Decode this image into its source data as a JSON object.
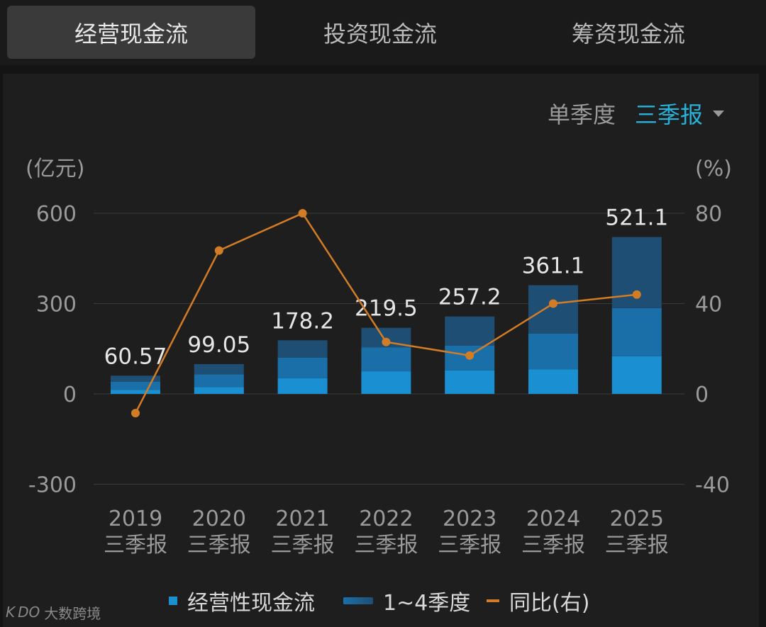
{
  "tabs": [
    "经营现金流",
    "投资现金流",
    "筹资现金流"
  ],
  "active_tab": 0,
  "period": {
    "single_label": "单季度",
    "selected_label": "三季报"
  },
  "colors": {
    "bg": "#141414",
    "panel": "#1e1e1e",
    "grid": "#3a3a3a",
    "bar_base": "#1a90d2",
    "bar_mid": "#1b6fa8",
    "bar_top": "#1e4e74",
    "line": "#d27c25",
    "accent": "#27b3d9"
  },
  "chart_data": {
    "type": "bar",
    "categories": [
      "2019",
      "2020",
      "2021",
      "2022",
      "2023",
      "2024",
      "2025"
    ],
    "category_sub": "三季报",
    "left_unit": "(亿元)",
    "right_unit": "(%)",
    "ylim_left": [
      -300,
      600
    ],
    "yticks_left": [
      600,
      300,
      0,
      -300
    ],
    "ylim_right": [
      -40,
      80
    ],
    "yticks_right": [
      80,
      40,
      0,
      -40
    ],
    "series": [
      {
        "name": "经营性现金流",
        "type": "stacked_bar",
        "q1": [
          13,
          23,
          52,
          75,
          78,
          82,
          125
        ],
        "q2": [
          27,
          42,
          68,
          80,
          82,
          118,
          160
        ],
        "q3": [
          20.57,
          34.05,
          58.2,
          64.5,
          97.2,
          161.1,
          236.1
        ],
        "values": [
          60.57,
          99.05,
          178.2,
          219.5,
          257.2,
          361.1,
          521.1
        ],
        "labels": [
          "60.57",
          "99.05",
          "178.2",
          "219.5",
          "257.2",
          "361.1",
          "521.1"
        ]
      },
      {
        "name": "同比(右)",
        "type": "line",
        "values": [
          -8.5,
          63.5,
          80,
          23,
          17,
          40,
          44
        ]
      }
    ],
    "legend": [
      "经营性现金流",
      "1~4季度",
      "同比(右)"
    ]
  },
  "brand": {
    "logo": "K DO",
    "name": "大数跨境"
  }
}
